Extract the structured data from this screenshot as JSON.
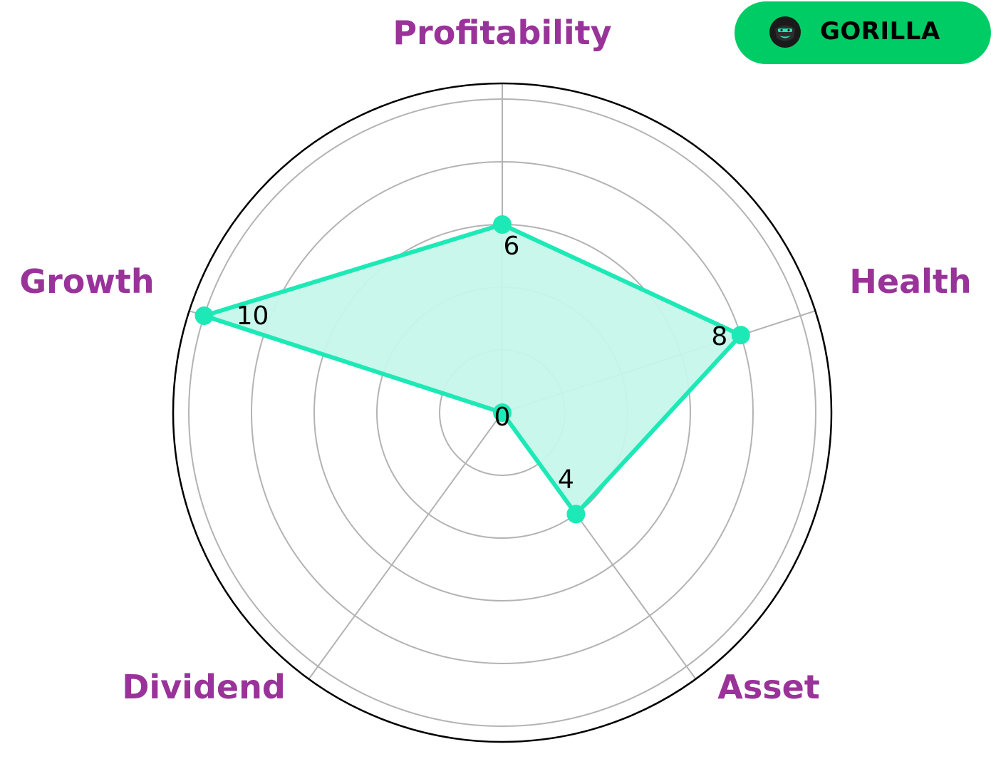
{
  "brand": {
    "name": "GORILLA",
    "logo_icon": "gorilla-face-icon",
    "badge_color": "#00cc66"
  },
  "colors": {
    "series": "#1de9b6",
    "fill": "#c6f7ea",
    "axis_label": "#993399",
    "grid": "#b3b3b3",
    "frame": "#000000"
  },
  "chart_data": {
    "type": "radar",
    "axes": [
      "Profitability",
      "Health",
      "Asset",
      "Dividend",
      "Growth"
    ],
    "values": [
      6,
      8,
      4,
      0,
      10
    ],
    "value_labels": [
      "6",
      "8",
      "4",
      "0",
      "10"
    ],
    "range": [
      0,
      10
    ],
    "grid": true,
    "legend": "none"
  }
}
